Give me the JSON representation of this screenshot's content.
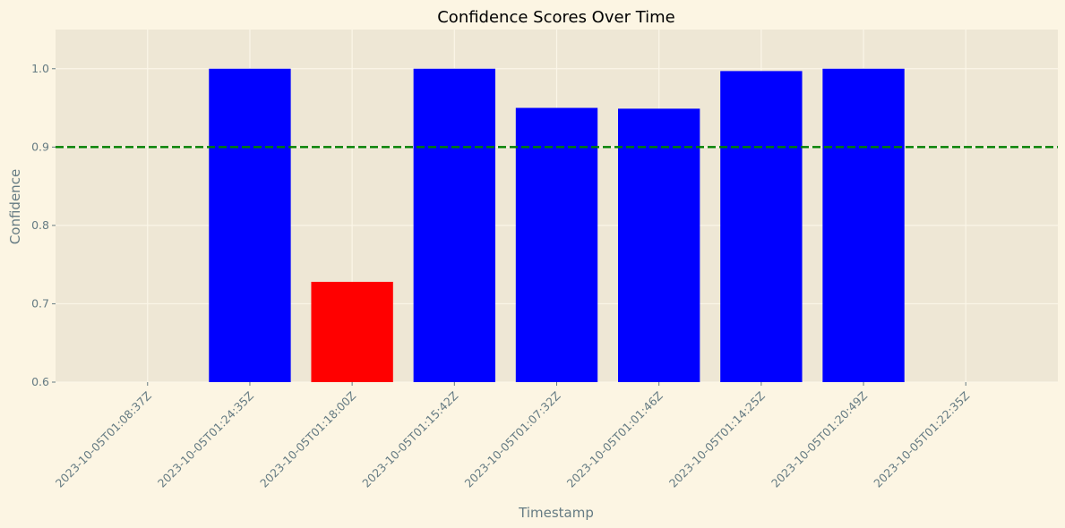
{
  "chart_data": {
    "type": "bar",
    "title": "Confidence Scores Over Time",
    "xlabel": "Timestamp",
    "ylabel": "Confidence",
    "ylim": [
      0.6,
      1.05
    ],
    "yticks": [
      "0.6",
      "0.7",
      "0.8",
      "0.9",
      "1.0"
    ],
    "grid": true,
    "categories": [
      "2023-10-05T01:08:37Z",
      "2023-10-05T01:24:35Z",
      "2023-10-05T01:18:00Z",
      "2023-10-05T01:15:42Z",
      "2023-10-05T01:07:32Z",
      "2023-10-05T01:01:46Z",
      "2023-10-05T01:14:25Z",
      "2023-10-05T01:20:49Z",
      "2023-10-05T01:22:35Z"
    ],
    "values": [
      null,
      1.0,
      0.728,
      1.0,
      0.95,
      0.949,
      0.997,
      1.0,
      null
    ],
    "bar_colors": [
      null,
      "#0000ff",
      "#ff0000",
      "#0000ff",
      "#0000ff",
      "#0000ff",
      "#0000ff",
      "#0000ff",
      null
    ],
    "threshold": {
      "value": 0.9,
      "color": "#008000",
      "style": "dashed"
    },
    "colors": {
      "background": "#fcf5e3",
      "plot_background": "#eee7d5",
      "grid": "#fbf6e8",
      "text": "#657b83"
    }
  }
}
